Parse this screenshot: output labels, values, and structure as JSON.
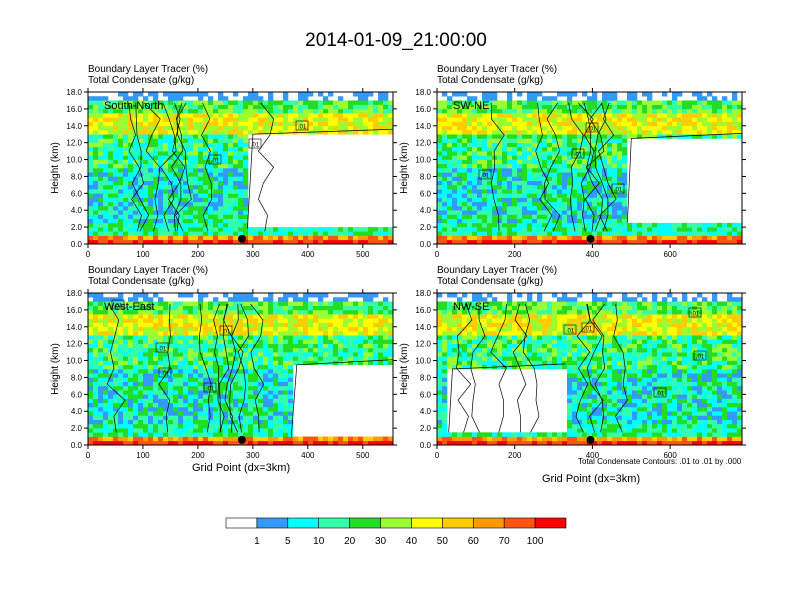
{
  "title": "2014-01-09_21:00:00",
  "colors": {
    "levels": [
      "#ffffff",
      "#3399ff",
      "#00ffff",
      "#33ffaa",
      "#22dd22",
      "#99ff33",
      "#ffff00",
      "#ffcc00",
      "#ff9900",
      "#ff5511",
      "#ff0000"
    ]
  },
  "colorbar": {
    "labels": [
      "1",
      "5",
      "10",
      "20",
      "30",
      "40",
      "50",
      "60",
      "70",
      "100"
    ]
  },
  "chart_data": [
    {
      "type": "heatmap",
      "label": "South-North",
      "title_left_1": "Boundary Layer Tracer    (%)",
      "title_left_2": "Total Condensate    (g/kg)",
      "ylabel": "Height (km)",
      "xlabel": "",
      "xlim": [
        0,
        555
      ],
      "ylim": [
        0,
        18
      ],
      "xticks": [
        "0",
        "100",
        "200",
        "300",
        "400",
        "500"
      ],
      "yticks": [
        "0.0",
        "2.0",
        "4.0",
        "6.0",
        "8.0",
        "10.0",
        "12.0",
        "14.0",
        "16.0",
        "18.0"
      ],
      "contour_labels": [
        ".01",
        ".01",
        ".01"
      ],
      "marker_x": 280,
      "clear_region": {
        "x0": 290,
        "x1": 555,
        "y0": 1.8,
        "y1": 13.0
      }
    },
    {
      "type": "heatmap",
      "label": "SW-NE",
      "title_left_1": "Boundary Layer Tracer    (%)",
      "title_left_2": "Total Condensate    (g/kg)",
      "ylabel": "Height (km)",
      "xlabel": "",
      "xlim": [
        0,
        785
      ],
      "ylim": [
        0,
        18
      ],
      "xticks": [
        "0",
        "200",
        "400",
        "600"
      ],
      "yticks": [
        "0.0",
        "2.0",
        "4.0",
        "6.0",
        "8.0",
        "10.0",
        "12.0",
        "14.0",
        "16.0",
        "18.0"
      ],
      "contour_labels": [
        ".01",
        ".01",
        ".01",
        ".01"
      ],
      "marker_x": 395,
      "clear_region": {
        "x0": 490,
        "x1": 785,
        "y0": 2.5,
        "y1": 12.5
      }
    },
    {
      "type": "heatmap",
      "label": "West-East",
      "title_left_1": "Boundary Layer Tracer    (%)",
      "title_left_2": "Total Condensate    (g/kg)",
      "ylabel": "Height (km)",
      "xlabel": "Grid Point (dx=3km)",
      "xlim": [
        0,
        555
      ],
      "ylim": [
        0,
        18
      ],
      "xticks": [
        "0",
        "100",
        "200",
        "300",
        "400",
        "500"
      ],
      "yticks": [
        "0.0",
        "2.0",
        "4.0",
        "6.0",
        "8.0",
        "10.0",
        "12.0",
        "14.0",
        "16.0",
        "18.0"
      ],
      "contour_labels": [
        ".01",
        ".01",
        ".01",
        ".01",
        ".01"
      ],
      "marker_x": 280,
      "clear_region": {
        "x0": 370,
        "x1": 555,
        "y0": 1.0,
        "y1": 9.5
      }
    },
    {
      "type": "heatmap",
      "label": "NW-SE",
      "title_left_1": "Boundary Layer Tracer    (%)",
      "title_left_2": "Total Condensate    (g/kg)",
      "ylabel": "Height (km)",
      "xlabel": "Grid Point (dx=3km)",
      "xlim": [
        0,
        785
      ],
      "ylim": [
        0,
        18
      ],
      "xticks": [
        "0",
        "200",
        "400",
        "600"
      ],
      "yticks": [
        "0.0",
        "2.0",
        "4.0",
        "6.0",
        "8.0",
        "10.0",
        "12.0",
        "14.0",
        "16.0",
        "18.0"
      ],
      "contour_labels": [
        ".01",
        ".01",
        ".01",
        ".01",
        ".01"
      ],
      "marker_x": 395,
      "clear_region": {
        "x0": 30,
        "x1": 330,
        "y0": 1.5,
        "y1": 9.0
      },
      "note": "Total Condensate Contours: .01 to .01 by .000"
    }
  ]
}
